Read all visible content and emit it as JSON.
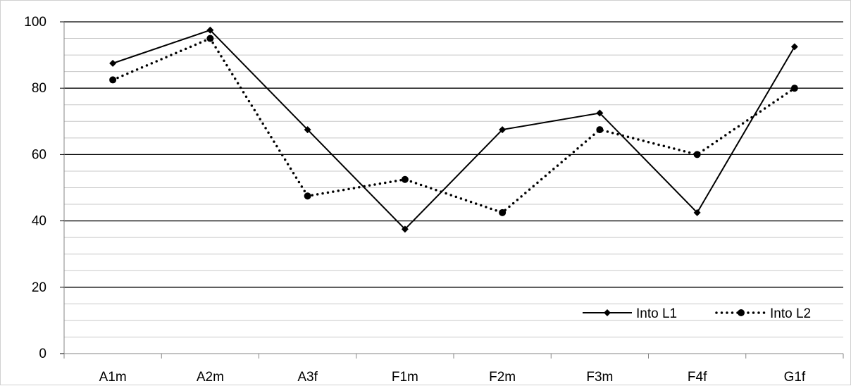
{
  "chart_data": {
    "type": "line",
    "title": "",
    "xlabel": "",
    "ylabel": "",
    "categories": [
      "A1m",
      "A2m",
      "A3f",
      "F1m",
      "F2m",
      "F3m",
      "F4f",
      "G1f"
    ],
    "ylim": [
      0,
      100
    ],
    "yticks": [
      0,
      20,
      40,
      60,
      80,
      100
    ],
    "yticks_text": [
      "0",
      "20",
      "40",
      "60",
      "80",
      "100"
    ],
    "minor_step": 5,
    "grid": true,
    "legend_position": "bottom-right",
    "series": [
      {
        "name": "Into L1",
        "values": [
          87.5,
          97.5,
          67.5,
          37.5,
          67.5,
          72.5,
          42.5,
          92.5
        ],
        "style": "solid",
        "marker": "diamond",
        "color": "#000000"
      },
      {
        "name": "Into L2",
        "values": [
          82.5,
          95,
          47.5,
          52.5,
          42.5,
          67.5,
          60,
          80
        ],
        "style": "dotted",
        "marker": "circle",
        "color": "#000000"
      }
    ]
  }
}
